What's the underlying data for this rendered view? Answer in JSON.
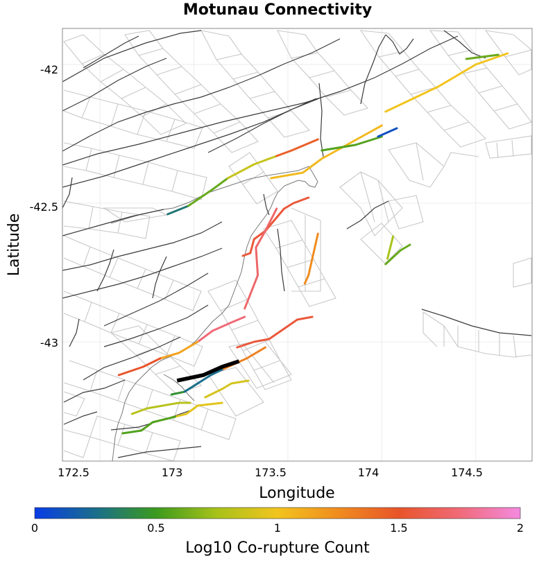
{
  "title": "Motunau Connectivity",
  "xlabel": "Longitude",
  "ylabel": "Latitude",
  "colorbar_label": "Log10 Co-rupture Count",
  "colorbar_ticks": [
    "0",
    "0.5",
    "1",
    "1.5",
    "2"
  ],
  "colorbar_range": [
    0,
    2
  ],
  "xticks": [
    "172.5",
    "173",
    "173.5",
    "174",
    "174.5"
  ],
  "yticks": [
    "-42",
    "-42.5",
    "-43"
  ],
  "colors": {
    "scale": [
      "#0a3ce6",
      "#1a6e8c",
      "#3c9a1e",
      "#a8c21a",
      "#f2c41e",
      "#f08c1e",
      "#e8542a",
      "#f06a78",
      "#f48ae0"
    ],
    "source_fault": "#000000"
  },
  "chart_data": {
    "type": "map",
    "x_range": [
      172.3,
      174.8
    ],
    "y_range": [
      -43.43,
      -41.87
    ],
    "source_fault": {
      "name": "Motunau",
      "trace": [
        [
          172.91,
          -43.14
        ],
        [
          173.05,
          -43.12
        ],
        [
          173.15,
          -43.09
        ],
        [
          173.24,
          -43.07
        ]
      ]
    },
    "ruptures": [
      {
        "value": 1.05,
        "trace": [
          [
            173.41,
            -42.41
          ],
          [
            173.58,
            -42.39
          ],
          [
            173.68,
            -42.34
          ],
          [
            173.92,
            -42.25
          ],
          [
            174.0,
            -42.22
          ]
        ]
      },
      {
        "value": 1.0,
        "trace": [
          [
            174.02,
            -42.17
          ],
          [
            174.3,
            -42.08
          ],
          [
            174.5,
            -42.0
          ],
          [
            174.67,
            -41.96
          ]
        ]
      },
      {
        "value": 0.6,
        "trace": [
          [
            174.45,
            -41.98
          ],
          [
            174.62,
            -41.965
          ]
        ]
      },
      {
        "value": 0.55,
        "trace": [
          [
            173.68,
            -42.31
          ],
          [
            173.86,
            -42.29
          ],
          [
            174.0,
            -42.26
          ]
        ]
      },
      {
        "value": 0.1,
        "trace": [
          [
            173.98,
            -42.26
          ],
          [
            174.08,
            -42.23
          ]
        ]
      },
      {
        "value": 0.3,
        "trace": [
          [
            172.86,
            -42.54
          ],
          [
            172.97,
            -42.51
          ]
        ]
      },
      {
        "value": 0.6,
        "trace": [
          [
            172.97,
            -42.51
          ],
          [
            173.1,
            -42.45
          ],
          [
            173.18,
            -42.41
          ]
        ]
      },
      {
        "value": 0.85,
        "trace": [
          [
            173.18,
            -42.41
          ],
          [
            173.32,
            -42.36
          ],
          [
            173.44,
            -42.33
          ]
        ]
      },
      {
        "value": 1.45,
        "trace": [
          [
            173.44,
            -42.33
          ],
          [
            173.52,
            -42.31
          ],
          [
            173.66,
            -42.27
          ]
        ]
      },
      {
        "value": 1.55,
        "trace": [
          [
            173.48,
            -42.52
          ],
          [
            173.53,
            -42.5
          ],
          [
            173.61,
            -42.48
          ]
        ]
      },
      {
        "value": 1.55,
        "trace": [
          [
            173.26,
            -42.69
          ],
          [
            173.3,
            -42.68
          ],
          [
            173.32,
            -42.63
          ],
          [
            173.38,
            -42.6
          ],
          [
            173.48,
            -42.52
          ]
        ]
      },
      {
        "value": 1.7,
        "trace": [
          [
            173.27,
            -42.88
          ],
          [
            173.34,
            -42.76
          ],
          [
            173.33,
            -42.66
          ],
          [
            173.38,
            -42.6
          ],
          [
            173.44,
            -42.52
          ]
        ]
      },
      {
        "value": 1.25,
        "trace": [
          [
            173.59,
            -42.79
          ],
          [
            173.61,
            -42.76
          ],
          [
            173.66,
            -42.61
          ]
        ]
      },
      {
        "value": 0.75,
        "trace": [
          [
            174.03,
            -42.7
          ],
          [
            174.06,
            -42.62
          ]
        ]
      },
      {
        "value": 0.6,
        "trace": [
          [
            174.02,
            -42.72
          ],
          [
            174.1,
            -42.67
          ],
          [
            174.15,
            -42.65
          ]
        ]
      },
      {
        "value": 1.55,
        "trace": [
          [
            173.23,
            -43.02
          ],
          [
            173.32,
            -43.0
          ],
          [
            173.4,
            -42.99
          ],
          [
            173.55,
            -42.92
          ],
          [
            173.63,
            -42.91
          ]
        ]
      },
      {
        "value": 1.75,
        "trace": [
          [
            173.27,
            -42.91
          ],
          [
            173.2,
            -42.93
          ],
          [
            173.1,
            -42.96
          ],
          [
            173.02,
            -43.0
          ]
        ]
      },
      {
        "value": 1.15,
        "trace": [
          [
            173.02,
            -43.0
          ],
          [
            172.92,
            -43.04
          ],
          [
            172.82,
            -43.06
          ]
        ]
      },
      {
        "value": 1.5,
        "trace": [
          [
            172.82,
            -43.06
          ],
          [
            172.73,
            -43.09
          ],
          [
            172.6,
            -43.12
          ]
        ]
      },
      {
        "value": 1.3,
        "trace": [
          [
            173.15,
            -43.1
          ],
          [
            173.28,
            -43.06
          ],
          [
            173.38,
            -43.02
          ]
        ]
      },
      {
        "value": 0.9,
        "trace": [
          [
            173.06,
            -43.2
          ],
          [
            173.15,
            -43.17
          ],
          [
            173.2,
            -43.15
          ],
          [
            173.29,
            -43.14
          ]
        ]
      },
      {
        "value": 0.45,
        "trace": [
          [
            172.88,
            -43.19
          ],
          [
            172.95,
            -43.18
          ],
          [
            173.02,
            -43.15
          ]
        ]
      },
      {
        "value": 0.25,
        "trace": [
          [
            172.95,
            -43.18
          ],
          [
            173.02,
            -43.15
          ],
          [
            173.09,
            -43.12
          ],
          [
            173.15,
            -43.1
          ]
        ]
      },
      {
        "value": 0.8,
        "trace": [
          [
            172.67,
            -43.26
          ],
          [
            172.75,
            -43.24
          ],
          [
            172.92,
            -43.22
          ],
          [
            172.98,
            -43.22
          ]
        ]
      },
      {
        "value": 0.95,
        "trace": [
          [
            172.9,
            -43.27
          ],
          [
            172.96,
            -43.26
          ],
          [
            173.02,
            -43.23
          ],
          [
            173.15,
            -43.22
          ]
        ]
      },
      {
        "value": 0.55,
        "trace": [
          [
            172.62,
            -43.33
          ],
          [
            172.72,
            -43.32
          ],
          [
            172.78,
            -43.29
          ],
          [
            172.9,
            -43.27
          ]
        ]
      }
    ]
  }
}
